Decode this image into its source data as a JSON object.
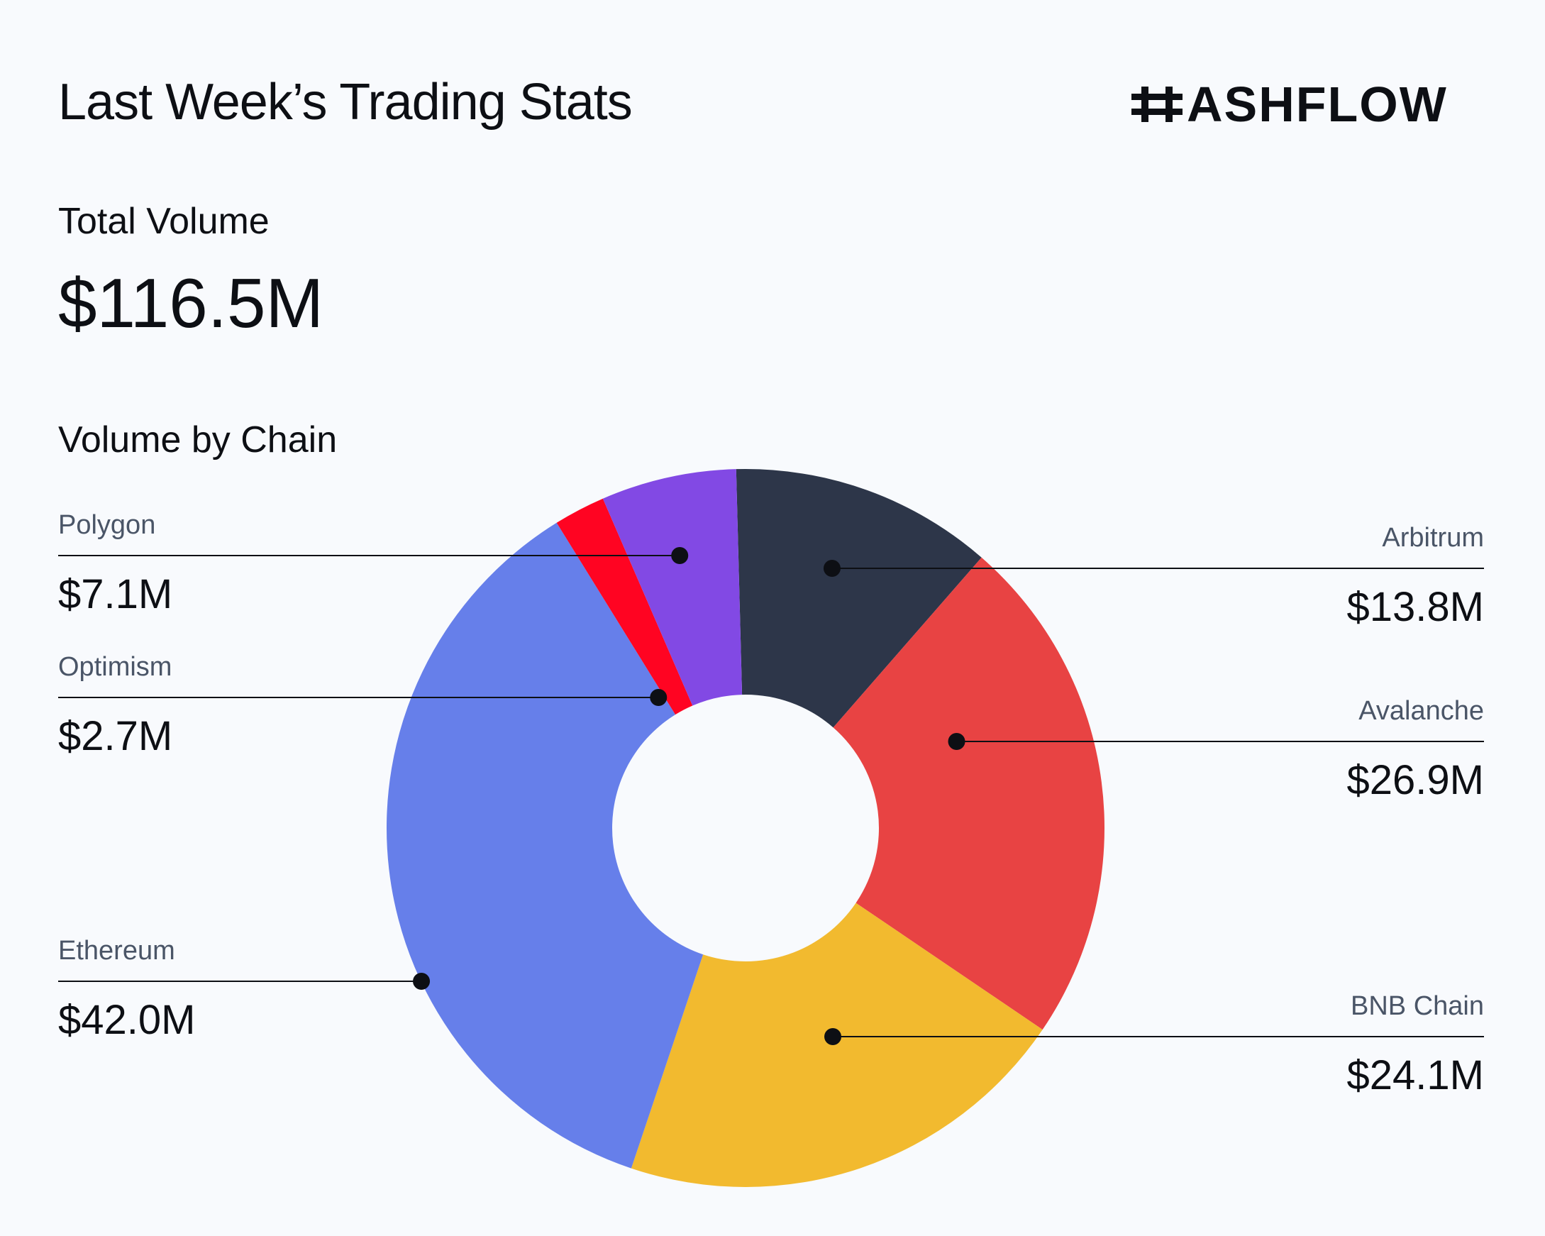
{
  "header": {
    "title": "Last Week’s Trading Stats",
    "logo_text": "ASHFLOW"
  },
  "total": {
    "label": "Total Volume",
    "value": "$116.5M"
  },
  "section": {
    "label": "Volume by Chain"
  },
  "chart_data": {
    "type": "pie",
    "donut": true,
    "title": "Volume by Chain",
    "unit": "$M",
    "slices": [
      {
        "name": "Arbitrum",
        "value": 13.8,
        "label": "$13.8M",
        "color": "#2D3649"
      },
      {
        "name": "Avalanche",
        "value": 26.9,
        "label": "$26.9M",
        "color": "#E84343"
      },
      {
        "name": "BNB Chain",
        "value": 24.1,
        "label": "$24.1M",
        "color": "#F2BA2F"
      },
      {
        "name": "Ethereum",
        "value": 42.0,
        "label": "$42.0M",
        "color": "#667FEA"
      },
      {
        "name": "Optimism",
        "value": 2.7,
        "label": "$2.7M",
        "color": "#FF0422"
      },
      {
        "name": "Polygon",
        "value": 7.1,
        "label": "$7.1M",
        "color": "#8249E4"
      }
    ]
  }
}
